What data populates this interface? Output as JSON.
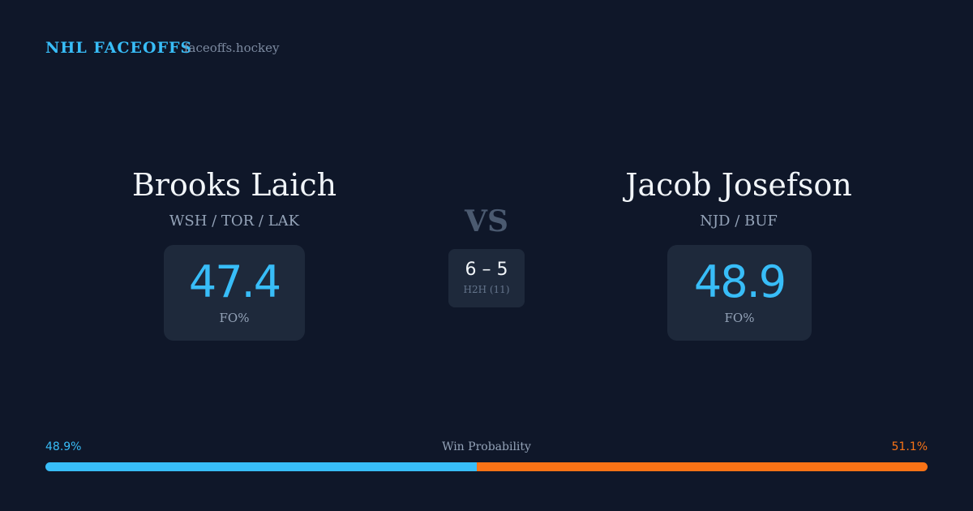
{
  "header": {
    "title": "NHL FACEOFFS",
    "site": "faceoffs.hockey"
  },
  "players": [
    {
      "name": "Brooks Laich",
      "teams": "WSH / TOR / LAK",
      "fo_pct": 47.4,
      "fo_label": "FO%"
    },
    {
      "name": "Jacob Josefson",
      "teams": "NJD / BUF",
      "fo_pct": 48.9,
      "fo_label": "FO%"
    }
  ],
  "vs": "VS",
  "h2h": {
    "record": "6 – 5",
    "label": "H2H (11)"
  },
  "win_probability": {
    "title": "Win Probability",
    "left": {
      "value": 48.9,
      "label": "48.9%"
    },
    "right": {
      "value": 51.1,
      "label": "51.1%"
    }
  }
}
